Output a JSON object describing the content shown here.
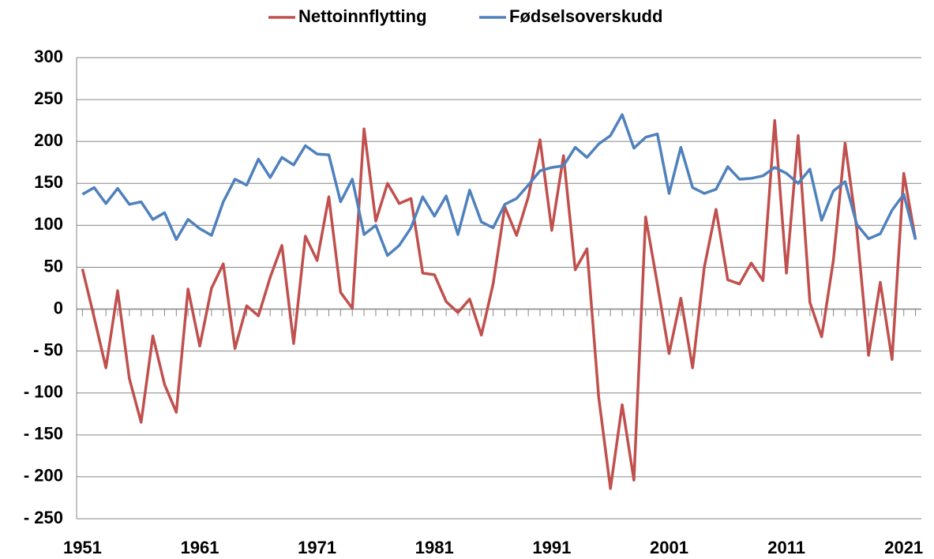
{
  "chart_data": {
    "type": "line",
    "x": [
      1951,
      1952,
      1953,
      1954,
      1955,
      1956,
      1957,
      1958,
      1959,
      1960,
      1961,
      1962,
      1963,
      1964,
      1965,
      1966,
      1967,
      1968,
      1969,
      1970,
      1971,
      1972,
      1973,
      1974,
      1975,
      1976,
      1977,
      1978,
      1979,
      1980,
      1981,
      1982,
      1983,
      1984,
      1985,
      1986,
      1987,
      1988,
      1989,
      1990,
      1991,
      1992,
      1993,
      1994,
      1995,
      1996,
      1997,
      1998,
      1999,
      2000,
      2001,
      2002,
      2003,
      2004,
      2005,
      2006,
      2007,
      2008,
      2009,
      2010,
      2011,
      2012,
      2013,
      2014,
      2015,
      2016,
      2017,
      2018,
      2019,
      2020,
      2021,
      2022
    ],
    "series": [
      {
        "name": "Nettoinnflytting",
        "color": "#c0504d",
        "values": [
          48,
          -10,
          -70,
          22,
          -83,
          -135,
          -32,
          -90,
          -123,
          24,
          -44,
          25,
          54,
          -47,
          4,
          -8,
          38,
          76,
          -41,
          87,
          58,
          134,
          20,
          1,
          215,
          105,
          150,
          126,
          132,
          43,
          41,
          9,
          -4,
          12,
          -31,
          30,
          122,
          88,
          134,
          202,
          94,
          183,
          47,
          72,
          -105,
          -214,
          -114,
          -204,
          110,
          30,
          -53,
          13,
          -70,
          50,
          119,
          35,
          30,
          55,
          34,
          225,
          43,
          207,
          8,
          -33,
          58,
          198,
          95,
          -55,
          32,
          -60,
          162,
          83
        ]
      },
      {
        "name": "Fødselsoverskudd",
        "color": "#4f81bd",
        "values": [
          137,
          145,
          126,
          144,
          125,
          128,
          107,
          115,
          83,
          107,
          96,
          88,
          128,
          155,
          148,
          179,
          157,
          181,
          172,
          195,
          185,
          184,
          128,
          155,
          89,
          100,
          64,
          76,
          97,
          134,
          111,
          135,
          89,
          142,
          104,
          97,
          125,
          132,
          148,
          165,
          169,
          171,
          193,
          181,
          197,
          207,
          232,
          192,
          205,
          209,
          138,
          193,
          145,
          138,
          143,
          170,
          155,
          156,
          159,
          169,
          162,
          150,
          167,
          106,
          141,
          152,
          101,
          84,
          90,
          118,
          137,
          83
        ]
      }
    ],
    "xlim": [
      1950.5,
      2022.5
    ],
    "xticks": [
      1951,
      1961,
      1971,
      1981,
      1991,
      2001,
      2011,
      2021
    ],
    "ylim": [
      -250,
      300
    ],
    "yticks": [
      {
        "value": -250,
        "label": "- 250"
      },
      {
        "value": -200,
        "label": "- 200"
      },
      {
        "value": -150,
        "label": "- 150"
      },
      {
        "value": -100,
        "label": "- 100"
      },
      {
        "value": -50,
        "label": "- 50"
      },
      0,
      50,
      100,
      150,
      200,
      250,
      300
    ],
    "grid": true,
    "legend": "top"
  }
}
